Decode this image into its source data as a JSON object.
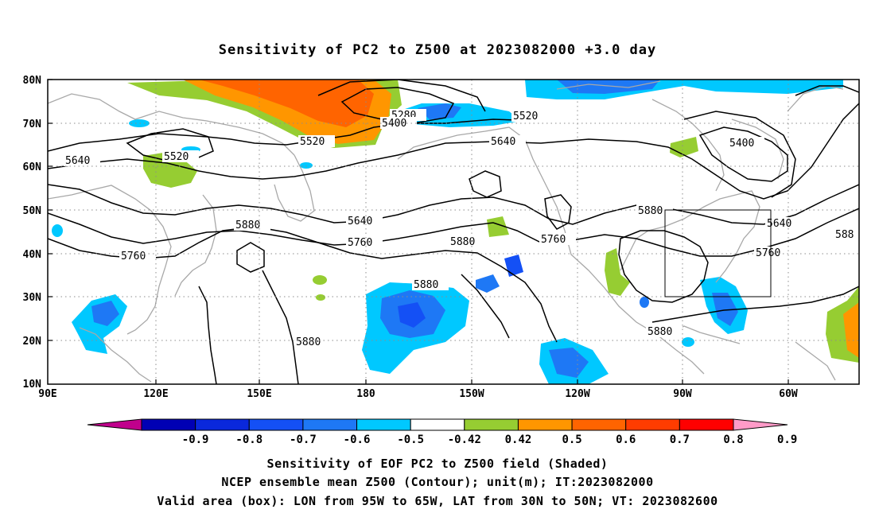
{
  "title": "Sensitivity of PC2 to Z500 at 2023082000 +3.0 day",
  "map": {
    "lon_labels": [
      "90E",
      "120E",
      "150E",
      "180",
      "150W",
      "120W",
      "90W",
      "60W"
    ],
    "lat_labels": [
      "80N",
      "70N",
      "60N",
      "50N",
      "40N",
      "30N",
      "20N",
      "10N"
    ],
    "lon_range": [
      90,
      315
    ],
    "lat_range": [
      10,
      80
    ],
    "valid_box": {
      "lon": [
        265,
        295
      ],
      "lat": [
        30,
        50
      ]
    },
    "grid": "dotted"
  },
  "contour_labels": [
    "5280",
    "5400",
    "5520",
    "5520",
    "5520",
    "5400",
    "5640",
    "5640",
    "5640",
    "5640",
    "5760",
    "5760",
    "5760",
    "5760",
    "5880",
    "5880",
    "5880",
    "5880",
    "5880",
    "5880",
    "588"
  ],
  "colorbar": {
    "labels": [
      "-0.9",
      "-0.8",
      "-0.7",
      "-0.6",
      "-0.5",
      "-0.42",
      "0.42",
      "0.5",
      "0.6",
      "0.7",
      "0.8",
      "0.9"
    ],
    "colors": [
      "#c0008c",
      "#0000b4",
      "#0a28dc",
      "#1450f5",
      "#1e78f5",
      "#00c8ff",
      "#ffffff",
      "#96cd32",
      "#ff9600",
      "#ff6400",
      "#ff3c00",
      "#ff0000",
      "#ff9bc8"
    ]
  },
  "shading_colors": {
    "neg_light": "#00c8ff",
    "neg_mid": "#1e78f5",
    "neg_dark": "#1450f5",
    "neg_deep": "#0a28dc",
    "pos_green": "#96cd32",
    "pos_orange": "#ff9600",
    "pos_dark_orange": "#ff6400"
  },
  "footer": [
    "Sensitivity of EOF PC2 to Z500 field (Shaded)",
    "NCEP ensemble mean Z500 (Contour); unit(m); IT:2023082000",
    "Valid area (box): LON from 95W to 65W, LAT from 30N to 50N; VT: 2023082600"
  ]
}
